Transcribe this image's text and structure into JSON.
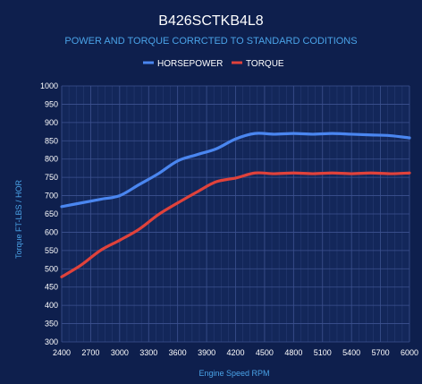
{
  "chart_data": {
    "type": "line",
    "title": "B426SCTKB4L8",
    "subtitle": "POWER AND TORQUE CORRCTED TO STANDARD CODITIONS",
    "xlabel": "Engine Speed RPM",
    "ylabel": "Torque FT-LBS / HOR",
    "x_ticks": [
      "2400",
      "2700",
      "3000",
      "3300",
      "3600",
      "3900",
      "4200",
      "4500",
      "4800",
      "5100",
      "5400",
      "5700",
      "6000"
    ],
    "xlim": [
      2400,
      6000
    ],
    "ylim": [
      300,
      1000
    ],
    "y_ticks": [
      300,
      350,
      400,
      450,
      500,
      550,
      600,
      650,
      700,
      750,
      800,
      850,
      900,
      950,
      1000
    ],
    "grid": true,
    "legend_position": "top-center",
    "series": [
      {
        "name": "HORSEPOWER",
        "color": "#4a86f0",
        "x": [
          2400,
          2600,
          2800,
          3000,
          3200,
          3400,
          3600,
          3800,
          4000,
          4200,
          4400,
          4600,
          4800,
          5000,
          5200,
          5400,
          5600,
          5800,
          6000
        ],
        "y": [
          670,
          680,
          690,
          700,
          730,
          760,
          795,
          812,
          828,
          855,
          870,
          868,
          870,
          868,
          870,
          868,
          866,
          864,
          858
        ]
      },
      {
        "name": "TORQUE",
        "color": "#e0423b",
        "x": [
          2400,
          2600,
          2800,
          3000,
          3200,
          3400,
          3600,
          3800,
          4000,
          4200,
          4400,
          4600,
          4800,
          5000,
          5200,
          5400,
          5600,
          5800,
          6000
        ],
        "y": [
          478,
          510,
          550,
          578,
          608,
          648,
          680,
          710,
          738,
          748,
          762,
          760,
          762,
          760,
          762,
          760,
          762,
          760,
          762
        ]
      }
    ]
  }
}
